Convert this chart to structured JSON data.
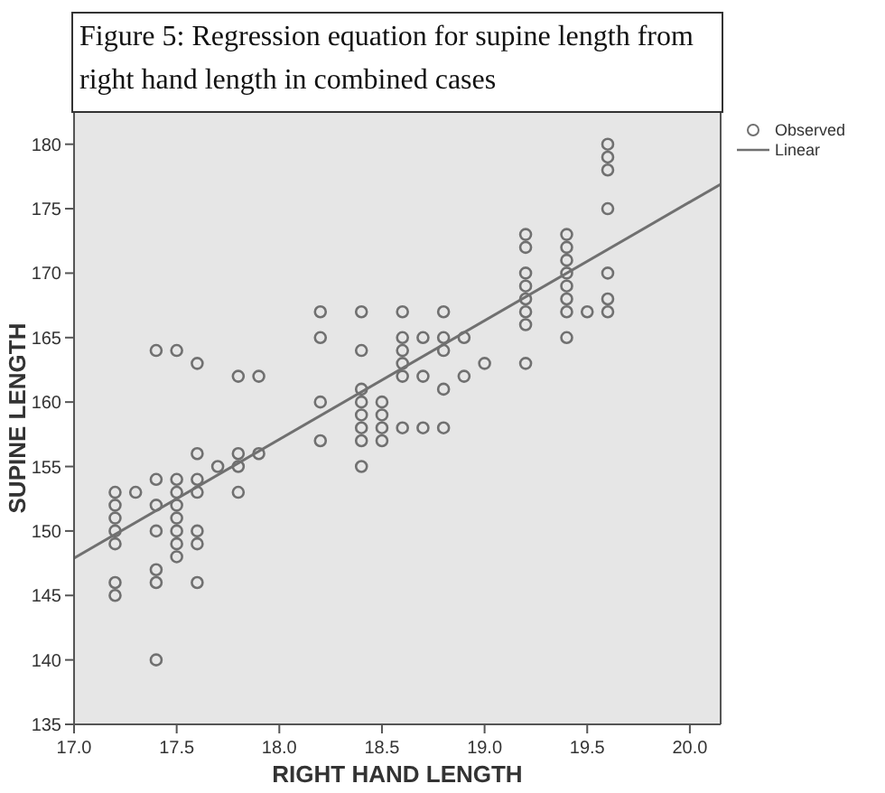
{
  "chart_data": {
    "type": "scatter",
    "title": "Figure 5: Regression equation for supine length from right hand length in combined cases",
    "xlabel": "RIGHT HAND LENGTH",
    "ylabel": "SUPINE LENGTH",
    "xlim": [
      17.0,
      20.15
    ],
    "ylim": [
      135,
      182.5
    ],
    "xticks": [
      {
        "value": 17,
        "label": "17.0"
      },
      {
        "value": 17.5,
        "label": "17.5"
      },
      {
        "value": 18,
        "label": "18.0"
      },
      {
        "value": 18.5,
        "label": "18.5"
      },
      {
        "value": 19,
        "label": "19.0"
      },
      {
        "value": 19.5,
        "label": "19.5"
      },
      {
        "value": 20,
        "label": "20.0"
      }
    ],
    "yticks": [
      135,
      140,
      145,
      150,
      155,
      160,
      165,
      170,
      175,
      180
    ],
    "grid": false,
    "legend": "top right",
    "marker": "circle",
    "series": [
      {
        "name": "Observed",
        "color": "#707070",
        "x": [
          17.2,
          17.2,
          17.2,
          17.2,
          17.2,
          17.2,
          17.2,
          17.3,
          17.4,
          17.4,
          17.4,
          17.4,
          17.4,
          17.4,
          17.4,
          17.5,
          17.5,
          17.5,
          17.5,
          17.5,
          17.5,
          17.5,
          17.5,
          17.6,
          17.6,
          17.6,
          17.6,
          17.6,
          17.6,
          17.6,
          17.7,
          17.8,
          17.8,
          17.8,
          17.8,
          17.9,
          17.9,
          18.2,
          18.2,
          18.2,
          18.2,
          18.4,
          18.4,
          18.4,
          18.4,
          18.4,
          18.4,
          18.4,
          18.4,
          18.5,
          18.5,
          18.5,
          18.5,
          18.6,
          18.6,
          18.6,
          18.6,
          18.6,
          18.6,
          18.7,
          18.7,
          18.7,
          18.8,
          18.8,
          18.8,
          18.8,
          18.8,
          18.9,
          18.9,
          19.0,
          19.2,
          19.2,
          19.2,
          19.2,
          19.2,
          19.2,
          19.2,
          19.2,
          19.4,
          19.4,
          19.4,
          19.4,
          19.4,
          19.4,
          19.4,
          19.4,
          19.5,
          19.6,
          19.6,
          19.6,
          19.6,
          19.6,
          19.6,
          19.6
        ],
        "values": [
          153,
          152,
          151,
          150,
          149,
          146,
          145,
          153,
          164,
          154,
          152,
          150,
          147,
          146,
          140,
          164,
          154,
          153,
          152,
          151,
          150,
          149,
          148,
          163,
          156,
          154,
          153,
          150,
          149,
          146,
          155,
          162,
          156,
          155,
          153,
          162,
          156,
          167,
          165,
          160,
          157,
          167,
          164,
          161,
          160,
          159,
          158,
          157,
          155,
          160,
          159,
          158,
          157,
          167,
          165,
          164,
          163,
          162,
          158,
          165,
          162,
          158,
          167,
          165,
          164,
          161,
          158,
          165,
          162,
          163,
          173,
          172,
          170,
          169,
          168,
          167,
          166,
          163,
          173,
          172,
          171,
          170,
          169,
          168,
          167,
          165,
          167,
          180,
          179,
          178,
          175,
          170,
          168,
          167
        ]
      },
      {
        "name": "Linear",
        "type": "line",
        "color": "#707070",
        "x": [
          17.0,
          20.15
        ],
        "values": [
          147.9,
          176.9
        ],
        "marker": "none",
        "line_style": "solid"
      }
    ]
  }
}
